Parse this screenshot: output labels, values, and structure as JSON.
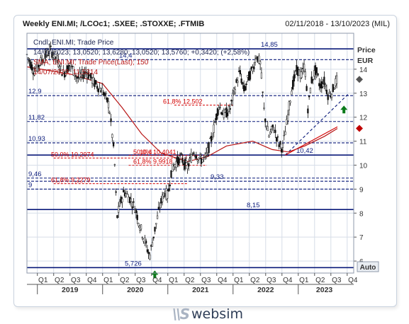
{
  "header": {
    "title": "Weekly ENI.MI; /LCOc1; .SXEE; .STOXXE; .FTMIB",
    "date_range": "02/11/2018 - 13/10/2023 (MIL)"
  },
  "legend": {
    "line1": "Cndl; ENI.MI; Trade Price",
    "line2": "14/07/2023; 13,0520; 13,6280; 13,0520; 13,5760; +0,3420; (+2,58%)",
    "line3": "SMA; ENI.MI; Trade Price(Last); 150",
    "line4": "14/07/2023; 11,5314"
  },
  "auto_button": "Auto",
  "brand": {
    "mark": "\\\\S",
    "name": "websim"
  },
  "colors": {
    "candles": "#111111",
    "sma": "#b81616",
    "level": "#0a1a7a",
    "fib": "#d40000",
    "arrow": "#0a7a1a",
    "marker_up": "#555555",
    "marker_down": "#c00000",
    "grid": "#d6dde8"
  },
  "chart_data": {
    "type": "candlestick",
    "y_axis": {
      "title": "Price",
      "unit": "EUR",
      "ylim": [
        5.5,
        15.5
      ],
      "ticks": [
        "6",
        "7",
        "8",
        "9",
        "10",
        "11",
        "12",
        "13",
        "14"
      ],
      "position": "right"
    },
    "x_axis": {
      "quarter_labels": [
        "Q1",
        "Q2",
        "Q3",
        "Q4",
        "Q1",
        "Q2",
        "Q3",
        "Q4",
        "Q1",
        "Q2",
        "Q3",
        "Q4",
        "Q1",
        "Q2",
        "Q3",
        "Q4",
        "Q1",
        "Q2",
        "Q3",
        "Q4"
      ],
      "quarter_starts": [
        2019.0,
        2019.25,
        2019.5,
        2019.75,
        2020.0,
        2020.25,
        2020.5,
        2020.75,
        2021.0,
        2021.25,
        2021.5,
        2021.75,
        2022.0,
        2022.25,
        2022.5,
        2022.75,
        2023.0,
        2023.25,
        2023.5,
        2023.75
      ],
      "years": [
        "2019",
        "2020",
        "2021",
        "2022",
        "2023"
      ],
      "range": [
        2018.84,
        2023.85
      ]
    },
    "price_path": [
      [
        2018.84,
        14.6
      ],
      [
        2018.95,
        13.9
      ],
      [
        2019.05,
        14.3
      ],
      [
        2019.2,
        14.8
      ],
      [
        2019.3,
        14.4
      ],
      [
        2019.4,
        13.8
      ],
      [
        2019.5,
        14.2
      ],
      [
        2019.62,
        13.6
      ],
      [
        2019.75,
        13.9
      ],
      [
        2019.88,
        13.4
      ],
      [
        2020.0,
        13.1
      ],
      [
        2020.1,
        12.5
      ],
      [
        2020.18,
        10.4
      ],
      [
        2020.22,
        7.8
      ],
      [
        2020.27,
        8.4
      ],
      [
        2020.33,
        8.9
      ],
      [
        2020.42,
        8.6
      ],
      [
        2020.5,
        8.2
      ],
      [
        2020.58,
        7.4
      ],
      [
        2020.64,
        6.9
      ],
      [
        2020.72,
        6.2
      ],
      [
        2020.8,
        7.3
      ],
      [
        2020.88,
        8.3
      ],
      [
        2020.95,
        8.9
      ],
      [
        2021.0,
        8.7
      ],
      [
        2021.05,
        9.7
      ],
      [
        2021.12,
        10.1
      ],
      [
        2021.2,
        10.3
      ],
      [
        2021.3,
        9.9
      ],
      [
        2021.4,
        10.6
      ],
      [
        2021.5,
        10.2
      ],
      [
        2021.58,
        10.3
      ],
      [
        2021.68,
        11.2
      ],
      [
        2021.78,
        12.5
      ],
      [
        2021.86,
        12.1
      ],
      [
        2021.95,
        12.3
      ],
      [
        2022.02,
        13.1
      ],
      [
        2022.1,
        13.9
      ],
      [
        2022.17,
        13.1
      ],
      [
        2022.23,
        13.6
      ],
      [
        2022.3,
        14.0
      ],
      [
        2022.36,
        14.6
      ],
      [
        2022.42,
        14.2
      ],
      [
        2022.48,
        12.1
      ],
      [
        2022.55,
        11.2
      ],
      [
        2022.62,
        11.6
      ],
      [
        2022.7,
        10.9
      ],
      [
        2022.76,
        10.7
      ],
      [
        2022.82,
        11.7
      ],
      [
        2022.9,
        13.2
      ],
      [
        2022.98,
        14.0
      ],
      [
        2023.05,
        13.7
      ],
      [
        2023.1,
        14.2
      ],
      [
        2023.15,
        12.3
      ],
      [
        2023.2,
        13.5
      ],
      [
        2023.27,
        14.0
      ],
      [
        2023.33,
        13.3
      ],
      [
        2023.4,
        13.5
      ],
      [
        2023.46,
        12.9
      ],
      [
        2023.52,
        13.05
      ],
      [
        2023.56,
        13.4
      ],
      [
        2023.6,
        13.576
      ]
    ],
    "sma_150": [
      [
        2018.84,
        14.1
      ],
      [
        2019.5,
        13.8
      ],
      [
        2020.0,
        13.4
      ],
      [
        2020.3,
        12.4
      ],
      [
        2020.6,
        11.3
      ],
      [
        2020.9,
        10.5
      ],
      [
        2021.3,
        10.15
      ],
      [
        2021.6,
        10.35
      ],
      [
        2021.9,
        10.8
      ],
      [
        2022.3,
        11.0
      ],
      [
        2022.6,
        10.65
      ],
      [
        2022.85,
        10.55
      ],
      [
        2023.1,
        10.8
      ],
      [
        2023.4,
        11.2
      ],
      [
        2023.6,
        11.53
      ]
    ],
    "last_close": "13,576",
    "sma_last": "11,5314",
    "levels": [
      {
        "label": "14,85",
        "value": 14.85
      },
      {
        "label": "14,4",
        "value": 14.4
      },
      {
        "label": "12,9",
        "value": 12.9
      },
      {
        "label": "11,82",
        "value": 11.82
      },
      {
        "label": "10,93",
        "value": 10.93
      },
      {
        "label": "10,42",
        "value": 10.42
      },
      {
        "label": "9,46",
        "value": 9.46
      },
      {
        "label": "9,33",
        "value": 9.33
      },
      {
        "label": "9",
        "value": 9.0
      },
      {
        "label": "8,15",
        "value": 8.15
      },
      {
        "label": "5,726",
        "value": 5.726
      }
    ],
    "fibonacci": [
      {
        "label": "61,8%  12,502",
        "value": 12.502
      },
      {
        "label": "50,0%   10,2974",
        "value": 10.2974
      },
      {
        "label": "50,0%  10,4041",
        "value": 10.4041
      },
      {
        "label": "61,8%  9,9918",
        "value": 9.9918
      },
      {
        "label": "10,4",
        "value": 10.4
      },
      {
        "label": "61,8%   9,2279",
        "value": 9.2279
      }
    ],
    "trendlines": [
      {
        "from": [
          2022.8,
          10.42
        ],
        "to": [
          2023.78,
          13.0
        ],
        "style": "dashed"
      },
      {
        "from": [
          2022.8,
          10.42
        ],
        "to": [
          2023.6,
          11.6
        ],
        "style": "solid"
      }
    ],
    "arrows": [
      {
        "x": 2020.8,
        "y": 5.726,
        "direction": "up"
      },
      {
        "x": 2023.7,
        "y": 12.6,
        "direction": "up"
      }
    ]
  }
}
